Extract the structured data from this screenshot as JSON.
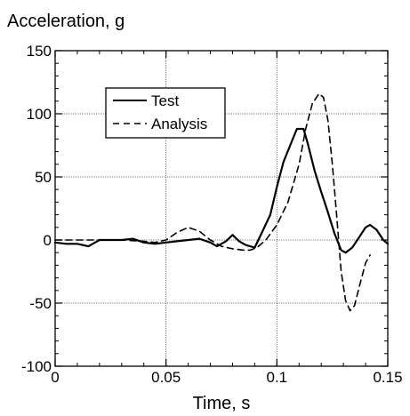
{
  "chart_data": {
    "type": "line",
    "ylabel": "Acceleration, g",
    "xlabel": "Time, s",
    "xlim": [
      0,
      0.15
    ],
    "ylim": [
      -100,
      150
    ],
    "xticks": [
      0,
      0.05,
      0.1,
      0.15
    ],
    "xtick_labels": [
      "0",
      "0.05",
      "0.1",
      "0.15"
    ],
    "yticks": [
      -100,
      -50,
      0,
      50,
      100,
      150
    ],
    "ytick_labels": [
      "-100",
      "-50",
      "0",
      "50",
      "100",
      "150"
    ],
    "grid": true,
    "legend_position": "top-left",
    "series": [
      {
        "name": "Test",
        "style": "solid",
        "color": "#000000",
        "x": [
          0,
          0.005,
          0.01,
          0.015,
          0.02,
          0.025,
          0.03,
          0.035,
          0.04,
          0.045,
          0.05,
          0.055,
          0.06,
          0.065,
          0.07,
          0.073,
          0.077,
          0.08,
          0.083,
          0.086,
          0.09,
          0.093,
          0.097,
          0.1,
          0.103,
          0.106,
          0.109,
          0.112,
          0.114,
          0.117,
          0.12,
          0.123,
          0.126,
          0.129,
          0.131,
          0.134,
          0.137,
          0.14,
          0.142,
          0.145,
          0.148,
          0.15
        ],
        "y": [
          -2,
          -3,
          -3,
          -5,
          0,
          0,
          0,
          1,
          -2,
          -3,
          -2,
          -1,
          0,
          1,
          -2,
          -5,
          -1,
          4,
          -1,
          -4,
          -6,
          5,
          20,
          42,
          62,
          75,
          88,
          88,
          76,
          55,
          38,
          22,
          5,
          -8,
          -10,
          -6,
          2,
          10,
          12,
          8,
          0,
          -3
        ]
      },
      {
        "name": "Analysis",
        "style": "dashed",
        "color": "#000000",
        "x": [
          0,
          0.01,
          0.02,
          0.03,
          0.04,
          0.045,
          0.05,
          0.055,
          0.06,
          0.065,
          0.07,
          0.075,
          0.08,
          0.085,
          0.088,
          0.091,
          0.095,
          0.1,
          0.105,
          0.11,
          0.113,
          0.116,
          0.119,
          0.121,
          0.123,
          0.125,
          0.127,
          0.129,
          0.131,
          0.133,
          0.135,
          0.137,
          0.14,
          0.142
        ],
        "y": [
          0,
          0,
          0,
          0,
          -1,
          -2,
          0,
          6,
          10,
          7,
          0,
          -5,
          -7,
          -8,
          -8,
          -6,
          0,
          12,
          30,
          60,
          88,
          108,
          116,
          113,
          95,
          60,
          18,
          -25,
          -48,
          -56,
          -52,
          -38,
          -18,
          -12
        ]
      }
    ]
  }
}
